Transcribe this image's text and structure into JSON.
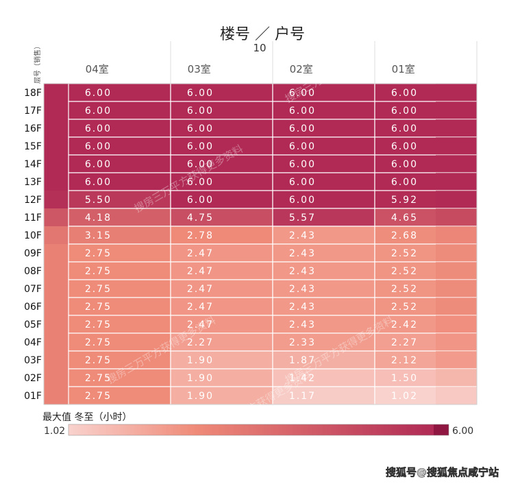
{
  "chart_data": {
    "type": "heatmap",
    "title": "楼号 ／ 户号",
    "subtitle": "10",
    "row_axis_label": "层号（销售）",
    "columns": [
      "04室",
      "03室",
      "02室",
      "01室"
    ],
    "rows": [
      "18F",
      "17F",
      "16F",
      "15F",
      "14F",
      "13F",
      "12F",
      "11F",
      "10F",
      "09F",
      "08F",
      "07F",
      "06F",
      "05F",
      "04F",
      "03F",
      "02F",
      "01F"
    ],
    "values": [
      [
        "6.00",
        "6.00",
        "6.00",
        "6.00"
      ],
      [
        "6.00",
        "6.00",
        "6.00",
        "6.00"
      ],
      [
        "6.00",
        "6.00",
        "6.00",
        "6.00"
      ],
      [
        "6.00",
        "6.00",
        "6.00",
        "6.00"
      ],
      [
        "6.00",
        "6.00",
        "6.00",
        "6.00"
      ],
      [
        "6.00",
        "6.00",
        "6.00",
        "6.00"
      ],
      [
        "5.50",
        "6.00",
        "6.00",
        "5.92"
      ],
      [
        "4.18",
        "4.75",
        "5.57",
        "4.65"
      ],
      [
        "3.15",
        "2.78",
        "2.43",
        "2.68"
      ],
      [
        "2.75",
        "2.47",
        "2.43",
        "2.52"
      ],
      [
        "2.75",
        "2.47",
        "2.43",
        "2.52"
      ],
      [
        "2.75",
        "2.47",
        "2.43",
        "2.52"
      ],
      [
        "2.75",
        "2.47",
        "2.43",
        "2.52"
      ],
      [
        "2.75",
        "2.47",
        "2.43",
        "2.42"
      ],
      [
        "2.75",
        "2.27",
        "2.33",
        "2.27"
      ],
      [
        "2.75",
        "1.90",
        "1.87",
        "2.12"
      ],
      [
        "2.75",
        "1.90",
        "1.42",
        "1.50"
      ],
      [
        "2.75",
        "1.90",
        "1.17",
        "1.02"
      ]
    ],
    "legend": {
      "title": "最大值  冬至（小时）",
      "min_label": "1.02",
      "max_label": "6.00",
      "min_value": 1.02,
      "max_value": 6.0
    },
    "colors": {
      "low": "#f9d2cd",
      "mid": "#ef8a78",
      "high": "#b02a55",
      "darkest": "#8e1640"
    }
  },
  "watermark": "搜房三万平方获得更多资料",
  "source": "搜狐号@搜狐焦点咸宁站"
}
